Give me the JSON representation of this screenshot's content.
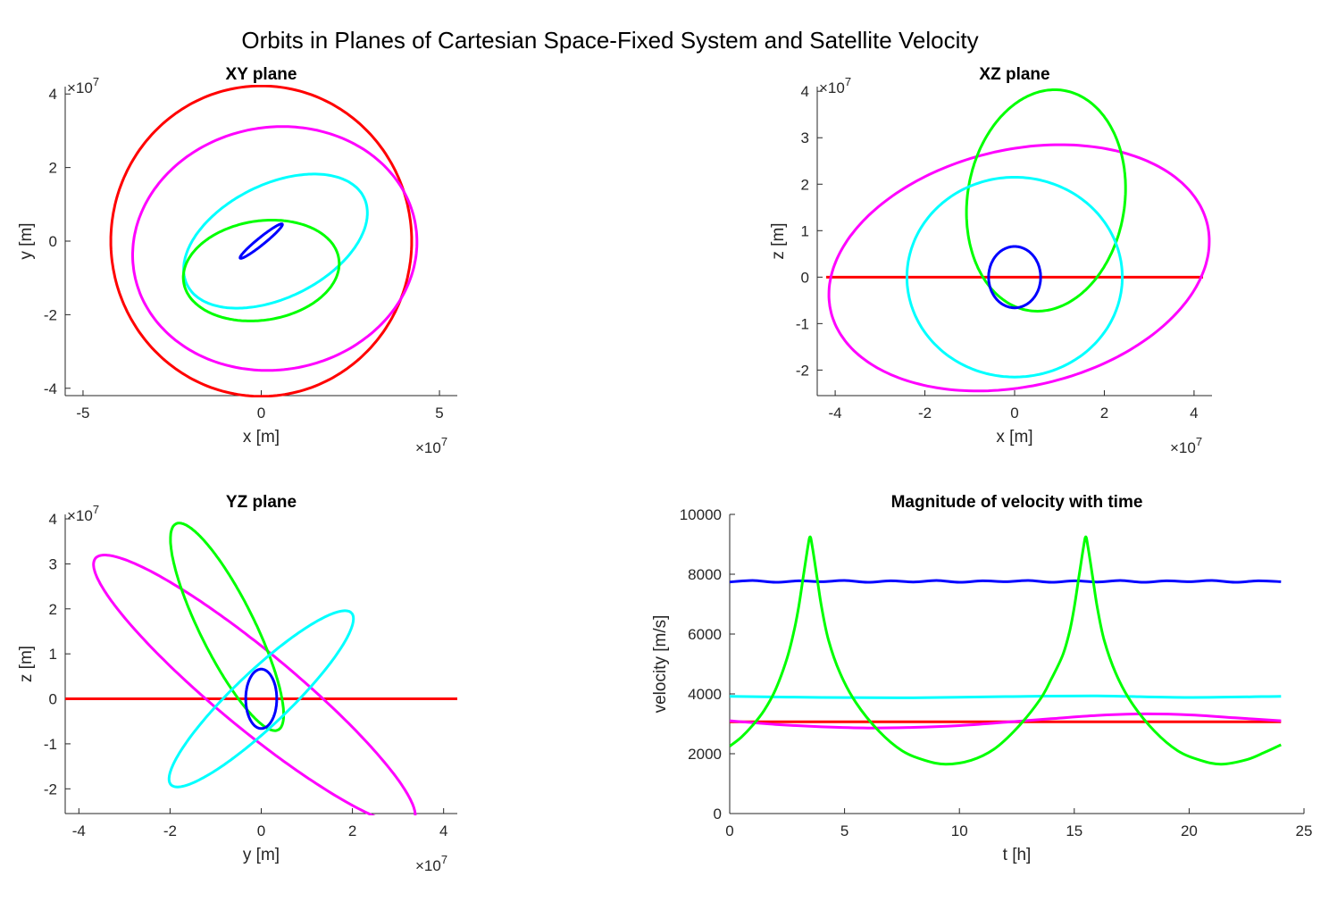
{
  "figure_title": "Orbits in Planes of Cartesian Space-Fixed System and Satellite Velocity",
  "colors": {
    "red": "#ff0000",
    "magenta": "#ff00ff",
    "cyan": "#00ffff",
    "green": "#00ff00",
    "blue": "#0000ff"
  },
  "chart_data": [
    {
      "id": "xy",
      "type": "line",
      "title": "XY plane",
      "xlabel": "x [m]",
      "ylabel": "y [m]",
      "xlim": [
        -5.5,
        5.5
      ],
      "ylim": [
        -4.2,
        4.2
      ],
      "xticks": [
        -5,
        0,
        5
      ],
      "yticks": [
        -4,
        -2,
        0,
        2,
        4
      ],
      "exponent_label": "×10",
      "exponent": "7",
      "orbits": [
        {
          "color": "red",
          "center": [
            0.0,
            0.0
          ],
          "a": 4.22,
          "b": 4.22,
          "angle": 0
        },
        {
          "color": "magenta",
          "center": [
            0.38,
            -0.2
          ],
          "a": 4.0,
          "b": 3.3,
          "angle": 8
        },
        {
          "color": "cyan",
          "center": [
            0.4,
            0.0
          ],
          "a": 2.75,
          "b": 1.55,
          "angle": 25
        },
        {
          "color": "green",
          "center": [
            0.0,
            -0.8
          ],
          "a": 2.2,
          "b": 1.35,
          "angle": 8
        },
        {
          "color": "blue",
          "center": [
            0.0,
            0.0
          ],
          "a": 0.75,
          "b": 0.1,
          "angle": 38
        }
      ]
    },
    {
      "id": "xz",
      "type": "line",
      "title": "XZ plane",
      "xlabel": "x [m]",
      "ylabel": "z [m]",
      "xlim": [
        -4.4,
        4.4
      ],
      "ylim": [
        -2.55,
        4.1
      ],
      "xticks": [
        -4,
        -2,
        0,
        2,
        4
      ],
      "yticks": [
        -2,
        -1,
        0,
        1,
        2,
        3,
        4
      ],
      "exponent_label": "×10",
      "exponent": "7",
      "orbits": [
        {
          "color": "magenta",
          "center": [
            0.1,
            0.2
          ],
          "a": 4.3,
          "b": 2.55,
          "angle": 12
        },
        {
          "color": "green",
          "center": [
            0.7,
            1.65
          ],
          "a": 2.4,
          "b": 1.75,
          "angle": 80
        },
        {
          "color": "cyan",
          "center": [
            0.0,
            0.0
          ],
          "a": 2.4,
          "b": 2.15,
          "angle": 0
        },
        {
          "color": "blue",
          "center": [
            0.0,
            0.0
          ],
          "a": 0.58,
          "b": 0.66,
          "angle": 0
        }
      ],
      "lines": [
        {
          "color": "red",
          "x": [
            -4.2,
            4.2
          ],
          "y": [
            0,
            0
          ]
        }
      ]
    },
    {
      "id": "yz",
      "type": "line",
      "title": "YZ plane",
      "xlabel": "y [m]",
      "ylabel": "z [m]",
      "xlim": [
        -4.3,
        4.3
      ],
      "ylim": [
        -2.55,
        4.1
      ],
      "xticks": [
        -4,
        -2,
        0,
        2,
        4
      ],
      "yticks": [
        -2,
        -1,
        0,
        1,
        2,
        3,
        4
      ],
      "exponent_label": "×10",
      "exponent": "7",
      "orbits": [
        {
          "color": "magenta",
          "center": [
            -0.15,
            0.2
          ],
          "a": 4.55,
          "b": 0.85,
          "angle": -40
        },
        {
          "color": "green",
          "center": [
            -0.75,
            1.6
          ],
          "a": 2.55,
          "b": 0.6,
          "angle": -64
        },
        {
          "color": "cyan",
          "center": [
            0.0,
            0.0
          ],
          "a": 2.75,
          "b": 0.6,
          "angle": 44
        },
        {
          "color": "blue",
          "center": [
            0.0,
            0.0
          ],
          "a": 0.34,
          "b": 0.66,
          "angle": 0
        }
      ],
      "lines": [
        {
          "color": "red",
          "x": [
            -4.3,
            4.3
          ],
          "y": [
            0,
            0
          ]
        }
      ]
    },
    {
      "id": "vel",
      "type": "line",
      "title": "Magnitude of velocity with time",
      "xlabel": "t [h]",
      "ylabel": "velocity [m/s]",
      "xlim": [
        0,
        25
      ],
      "ylim": [
        0,
        10000
      ],
      "xticks": [
        0,
        5,
        10,
        15,
        20,
        25
      ],
      "yticks": [
        0,
        2000,
        4000,
        6000,
        8000,
        10000
      ],
      "series": [
        {
          "color": "blue",
          "x": [
            0,
            1,
            2,
            3,
            4,
            5,
            6,
            7,
            8,
            9,
            10,
            11,
            12,
            13,
            14,
            15,
            16,
            17,
            18,
            19,
            20,
            21,
            22,
            23,
            24
          ],
          "y": [
            7740,
            7790,
            7730,
            7780,
            7750,
            7790,
            7730,
            7780,
            7740,
            7790,
            7730,
            7780,
            7750,
            7790,
            7730,
            7780,
            7740,
            7790,
            7730,
            7780,
            7750,
            7790,
            7730,
            7780,
            7750
          ]
        },
        {
          "color": "cyan",
          "x": [
            0,
            4,
            8,
            12,
            16,
            20,
            24
          ],
          "y": [
            3920,
            3880,
            3870,
            3910,
            3930,
            3880,
            3920
          ]
        },
        {
          "color": "red",
          "x": [
            0,
            24
          ],
          "y": [
            3070,
            3070
          ]
        },
        {
          "color": "magenta",
          "x": [
            0,
            2,
            4,
            6,
            8,
            10,
            12,
            14,
            16,
            18,
            20,
            22,
            24
          ],
          "y": [
            3100,
            2980,
            2900,
            2860,
            2880,
            2940,
            3050,
            3170,
            3280,
            3330,
            3300,
            3200,
            3100
          ]
        },
        {
          "color": "green",
          "x": [
            0,
            0.5,
            1,
            1.5,
            2,
            2.5,
            2.8,
            3.0,
            3.2,
            3.4,
            3.5,
            3.6,
            3.8,
            4.0,
            4.3,
            4.8,
            5.5,
            6.5,
            7.5,
            8.5,
            9.4,
            10.5,
            11.5,
            12.5,
            13.5,
            14,
            14.5,
            14.8,
            15.0,
            15.2,
            15.4,
            15.5,
            15.6,
            15.8,
            16.0,
            16.3,
            16.8,
            17.5,
            18.5,
            19.5,
            20.5,
            21.4,
            22.5,
            23.3,
            24
          ],
          "y": [
            2250,
            2550,
            2950,
            3450,
            4150,
            5200,
            6100,
            6900,
            7900,
            8900,
            9250,
            8900,
            7900,
            6900,
            5800,
            4700,
            3700,
            2750,
            2100,
            1780,
            1650,
            1780,
            2150,
            2850,
            3800,
            4500,
            5300,
            6100,
            6900,
            7900,
            8900,
            9250,
            8900,
            7900,
            6900,
            5800,
            4700,
            3700,
            2750,
            2100,
            1780,
            1650,
            1800,
            2050,
            2300
          ]
        }
      ]
    }
  ]
}
